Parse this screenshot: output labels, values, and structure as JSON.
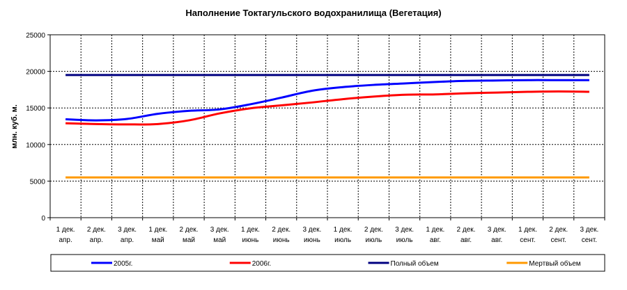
{
  "chart_data": {
    "type": "line",
    "title": "Наполнение Токтагульского водохранилища (Вегетация)",
    "xlabel": "",
    "ylabel": "млн. куб. м.",
    "ylim": [
      0,
      25000
    ],
    "yticks": [
      "0",
      "5000",
      "10000",
      "15000",
      "20000",
      "25000"
    ],
    "grid": true,
    "legend_position": "bottom",
    "categories": [
      [
        "1 дек.",
        "апр."
      ],
      [
        "2 дек.",
        "апр."
      ],
      [
        "3 дек.",
        "апр."
      ],
      [
        "1 дек.",
        "май"
      ],
      [
        "2 дек.",
        "май"
      ],
      [
        "3 дек.",
        "май"
      ],
      [
        "1 дек.",
        "июнь"
      ],
      [
        "2 дек.",
        "июнь"
      ],
      [
        "3 дек.",
        "июнь"
      ],
      [
        "1 дек.",
        "июль"
      ],
      [
        "2 дек.",
        "июль"
      ],
      [
        "3 дек.",
        "июль"
      ],
      [
        "1 дек.",
        "авг."
      ],
      [
        "2 дек.",
        "авг."
      ],
      [
        "3 дек.",
        "авг."
      ],
      [
        "1 дек.",
        "сент."
      ],
      [
        "2 дек.",
        "сент."
      ],
      [
        "3 дек.",
        "сент."
      ]
    ],
    "series": [
      {
        "name": "2005г.",
        "color": "#0000ff",
        "values": [
          13450,
          13300,
          13500,
          14200,
          14600,
          14800,
          15500,
          16400,
          17350,
          17850,
          18150,
          18350,
          18550,
          18700,
          18750,
          18800,
          18800,
          18800
        ]
      },
      {
        "name": "2006г.",
        "color": "#ff0000",
        "values": [
          12900,
          12800,
          12750,
          12800,
          13300,
          14250,
          14950,
          15350,
          15750,
          16200,
          16550,
          16800,
          16850,
          17000,
          17100,
          17200,
          17250,
          17200
        ]
      },
      {
        "name": "Полный объем",
        "color": "#000080",
        "values": [
          19500,
          19500,
          19500,
          19500,
          19500,
          19500,
          19500,
          19500,
          19500,
          19500,
          19500,
          19500,
          19500,
          19500,
          19500,
          19500,
          19500,
          19500
        ]
      },
      {
        "name": "Мертвый объем",
        "color": "#ff9900",
        "values": [
          5500,
          5500,
          5500,
          5500,
          5500,
          5500,
          5500,
          5500,
          5500,
          5500,
          5500,
          5500,
          5500,
          5500,
          5500,
          5500,
          5500,
          5500
        ]
      }
    ]
  }
}
